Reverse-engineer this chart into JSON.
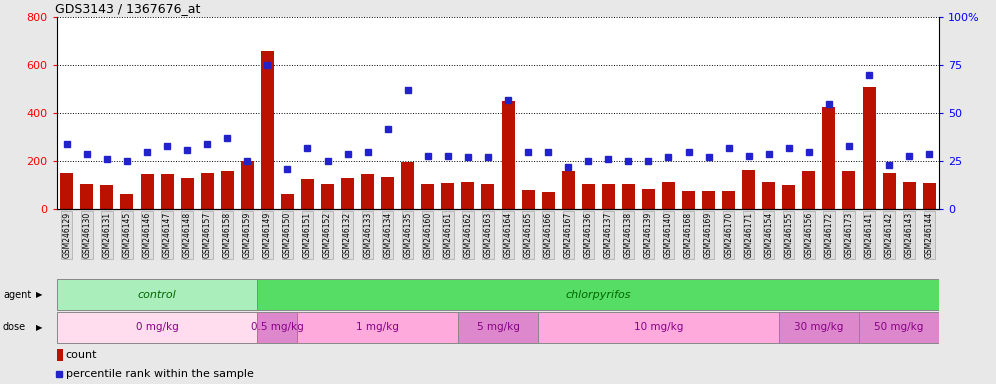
{
  "title": "GDS3143 / 1367676_at",
  "samples": [
    "GSM246129",
    "GSM246130",
    "GSM246131",
    "GSM246145",
    "GSM246146",
    "GSM246147",
    "GSM246148",
    "GSM246157",
    "GSM246158",
    "GSM246159",
    "GSM246149",
    "GSM246150",
    "GSM246151",
    "GSM246152",
    "GSM246132",
    "GSM246133",
    "GSM246134",
    "GSM246135",
    "GSM246160",
    "GSM246161",
    "GSM246162",
    "GSM246163",
    "GSM246164",
    "GSM246165",
    "GSM246166",
    "GSM246167",
    "GSM246136",
    "GSM246137",
    "GSM246138",
    "GSM246139",
    "GSM246140",
    "GSM246168",
    "GSM246169",
    "GSM246170",
    "GSM246171",
    "GSM246154",
    "GSM246155",
    "GSM246156",
    "GSM246172",
    "GSM246173",
    "GSM246141",
    "GSM246142",
    "GSM246143",
    "GSM246144"
  ],
  "counts": [
    150,
    105,
    100,
    65,
    145,
    145,
    130,
    150,
    160,
    200,
    660,
    65,
    125,
    105,
    130,
    145,
    135,
    195,
    105,
    110,
    115,
    105,
    450,
    80,
    70,
    160,
    105,
    105,
    105,
    85,
    115,
    75,
    75,
    75,
    165,
    115,
    100,
    160,
    425,
    160,
    510,
    150,
    115,
    110
  ],
  "percentiles": [
    34,
    29,
    26,
    25,
    30,
    33,
    31,
    34,
    37,
    25,
    75,
    21,
    32,
    25,
    29,
    30,
    42,
    62,
    28,
    28,
    27,
    27,
    57,
    30,
    30,
    22,
    25,
    26,
    25,
    25,
    27,
    30,
    27,
    32,
    28,
    29,
    32,
    30,
    55,
    33,
    70,
    23,
    28,
    29
  ],
  "agent_groups": [
    {
      "label": "control",
      "start": 0,
      "end": 10,
      "color": "#AAEEBB"
    },
    {
      "label": "chlorpyrifos",
      "start": 10,
      "end": 44,
      "color": "#55DD66"
    }
  ],
  "dose_groups": [
    {
      "label": "0 mg/kg",
      "start": 0,
      "end": 10,
      "color": "#FFDDEE"
    },
    {
      "label": "0.5 mg/kg",
      "start": 10,
      "end": 12,
      "color": "#DD88CC"
    },
    {
      "label": "1 mg/kg",
      "start": 12,
      "end": 20,
      "color": "#FFAADD"
    },
    {
      "label": "5 mg/kg",
      "start": 20,
      "end": 24,
      "color": "#DD88CC"
    },
    {
      "label": "10 mg/kg",
      "start": 24,
      "end": 36,
      "color": "#FFAADD"
    },
    {
      "label": "30 mg/kg",
      "start": 36,
      "end": 40,
      "color": "#DD88CC"
    },
    {
      "label": "50 mg/kg",
      "start": 40,
      "end": 44,
      "color": "#DD88CC"
    }
  ],
  "bar_color": "#BB1100",
  "dot_color": "#2222CC",
  "ylim_left": [
    0,
    800
  ],
  "ylim_right": [
    0,
    100
  ],
  "yticks_left": [
    0,
    200,
    400,
    600,
    800
  ],
  "yticks_right": [
    0,
    25,
    50,
    75,
    100
  ],
  "fig_bg": "#E8E8E8",
  "plot_bg": "#FFFFFF",
  "agent_label_color": "#006600",
  "dose_label_color": "#880088"
}
